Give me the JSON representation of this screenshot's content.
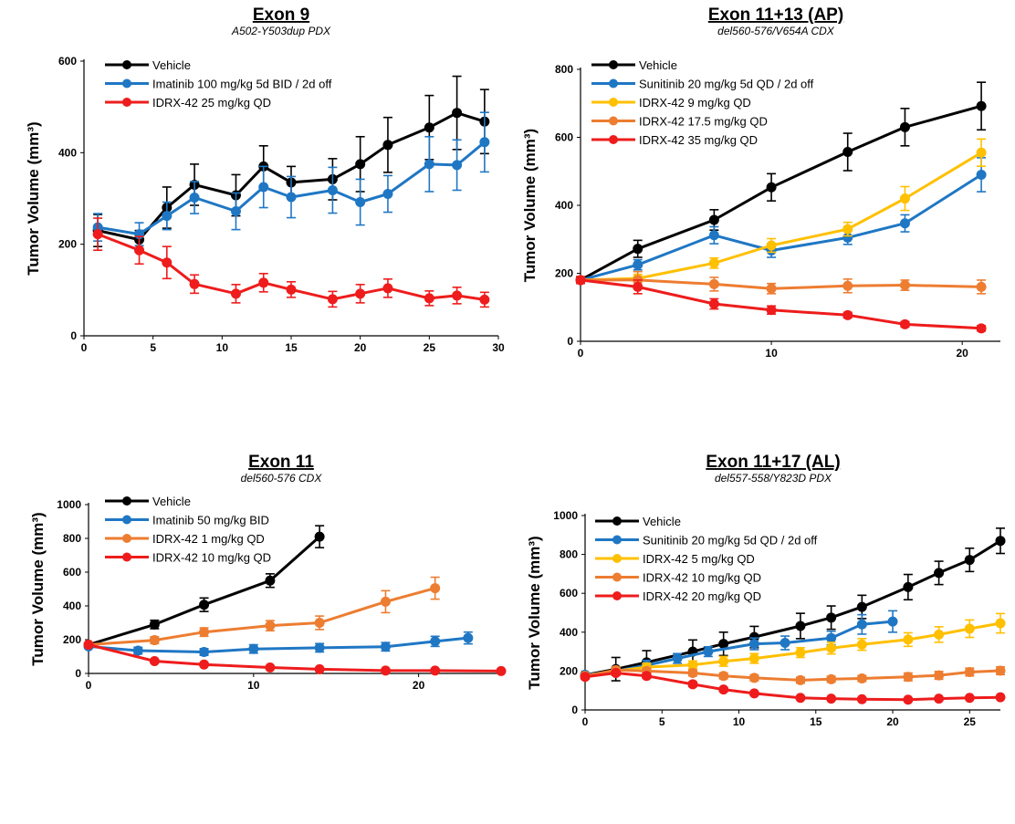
{
  "chart_data": [
    {
      "type": "line",
      "title": "Exon 9",
      "subtitle": "A502-Y503dup PDX",
      "xlabel": "",
      "ylabel": "Tumor Volume (mm³)",
      "xlim": [
        0,
        30
      ],
      "ylim": [
        0,
        600
      ],
      "xticks": [
        0,
        5,
        10,
        15,
        20,
        25,
        30
      ],
      "yticks": [
        0,
        200,
        400,
        600
      ],
      "grid": false,
      "legend": "top-left",
      "series": [
        {
          "name": "Vehicle",
          "color": "#000000",
          "x": [
            1,
            4,
            6,
            8,
            11,
            13,
            15,
            18,
            20,
            22,
            25,
            27,
            29
          ],
          "y": [
            230,
            210,
            280,
            330,
            307,
            370,
            335,
            342,
            375,
            417,
            455,
            487,
            468
          ],
          "err": [
            35,
            20,
            45,
            45,
            45,
            45,
            35,
            45,
            60,
            60,
            70,
            80,
            70
          ]
        },
        {
          "name": "Imatinib 100 mg/kg 5d BID / 2d off",
          "color": "#1f77c4",
          "x": [
            1,
            4,
            6,
            8,
            11,
            13,
            15,
            18,
            20,
            22,
            25,
            27,
            29
          ],
          "y": [
            237,
            222,
            262,
            302,
            272,
            325,
            303,
            318,
            292,
            310,
            375,
            373,
            423
          ],
          "err": [
            30,
            25,
            30,
            35,
            40,
            45,
            45,
            50,
            50,
            40,
            60,
            55,
            65
          ]
        },
        {
          "name": "IDRX-42 25 mg/kg QD",
          "color": "#ee1c1c",
          "x": [
            1,
            4,
            6,
            8,
            11,
            13,
            15,
            18,
            20,
            22,
            25,
            27,
            29
          ],
          "y": [
            222,
            187,
            160,
            113,
            92,
            116,
            101,
            80,
            92,
            104,
            82,
            88,
            79
          ],
          "err": [
            35,
            30,
            35,
            20,
            20,
            20,
            17,
            17,
            20,
            20,
            16,
            18,
            16
          ]
        }
      ]
    },
    {
      "type": "line",
      "title": "Exon 11+13 (AP)",
      "subtitle": "del560-576/V654A CDX",
      "xlabel": "",
      "ylabel": "Tumor Volume (mm³)",
      "xlim": [
        0,
        22
      ],
      "ylim": [
        0,
        800
      ],
      "xticks": [
        0,
        10,
        20
      ],
      "yticks": [
        0,
        200,
        400,
        600,
        800
      ],
      "grid": false,
      "legend": "top-left",
      "series": [
        {
          "name": "Vehicle",
          "color": "#000000",
          "x": [
            0,
            3,
            7,
            10,
            14,
            17,
            21
          ],
          "y": [
            180,
            272,
            357,
            453,
            557,
            630,
            692
          ],
          "err": [
            10,
            25,
            30,
            40,
            55,
            55,
            70
          ]
        },
        {
          "name": "Sunitinib 20 mg/kg 5d QD / 2d off",
          "color": "#1f77c4",
          "x": [
            0,
            3,
            7,
            10,
            14,
            17,
            21
          ],
          "y": [
            180,
            225,
            312,
            267,
            305,
            347,
            490
          ],
          "err": [
            10,
            15,
            25,
            20,
            20,
            25,
            50
          ]
        },
        {
          "name": "IDRX-42 9 mg/kg QD",
          "color": "#ffc000",
          "x": [
            0,
            3,
            7,
            10,
            14,
            17,
            21
          ],
          "y": [
            180,
            185,
            230,
            282,
            330,
            420,
            555
          ],
          "err": [
            10,
            12,
            15,
            20,
            20,
            35,
            40
          ]
        },
        {
          "name": "IDRX-42 17.5 mg/kg QD",
          "color": "#ed7d31",
          "x": [
            0,
            3,
            7,
            10,
            14,
            17,
            21
          ],
          "y": [
            180,
            180,
            168,
            155,
            163,
            165,
            160
          ],
          "err": [
            10,
            25,
            20,
            15,
            20,
            15,
            20
          ]
        },
        {
          "name": "IDRX-42 35 mg/kg QD",
          "color": "#ee1c1c",
          "x": [
            0,
            3,
            7,
            10,
            14,
            17,
            21
          ],
          "y": [
            180,
            160,
            110,
            92,
            77,
            50,
            38
          ],
          "err": [
            10,
            20,
            15,
            12,
            8,
            8,
            8
          ]
        }
      ]
    },
    {
      "type": "line",
      "title": "Exon 11",
      "subtitle": "del560-576 CDX",
      "xlabel": "",
      "ylabel": "Tumor Volume (mm³)",
      "xlim": [
        0,
        25
      ],
      "ylim": [
        0,
        1000
      ],
      "xticks": [
        0,
        10,
        20
      ],
      "yticks": [
        0,
        200,
        400,
        600,
        800,
        1000
      ],
      "grid": false,
      "legend": "top-left",
      "series": [
        {
          "name": "Vehicle",
          "color": "#000000",
          "x": [
            0,
            4,
            7,
            11,
            14
          ],
          "y": [
            170,
            290,
            407,
            550,
            810
          ],
          "err": [
            10,
            25,
            40,
            40,
            65
          ]
        },
        {
          "name": "Imatinib 50 mg/kg BID",
          "color": "#1f77c4",
          "x": [
            0,
            3,
            7,
            10,
            14,
            18,
            21,
            23
          ],
          "y": [
            160,
            135,
            127,
            145,
            152,
            158,
            190,
            210
          ],
          "err": [
            10,
            20,
            20,
            25,
            25,
            25,
            30,
            35
          ]
        },
        {
          "name": "IDRX-42 1 mg/kg QD",
          "color": "#ed7d31",
          "x": [
            0,
            4,
            7,
            11,
            14,
            18,
            21
          ],
          "y": [
            170,
            197,
            245,
            283,
            300,
            425,
            505
          ],
          "err": [
            10,
            20,
            25,
            30,
            40,
            65,
            65
          ]
        },
        {
          "name": "IDRX-42 10 mg/kg QD",
          "color": "#ee1c1c",
          "x": [
            0,
            4,
            7,
            11,
            14,
            18,
            21,
            25
          ],
          "y": [
            170,
            73,
            53,
            35,
            25,
            17,
            17,
            14
          ],
          "err": [
            10,
            8,
            6,
            5,
            5,
            4,
            4,
            4
          ]
        }
      ]
    },
    {
      "type": "line",
      "title": "Exon 11+17 (AL)",
      "subtitle": "del557-558/Y823D PDX",
      "xlabel": "",
      "ylabel": "Tumor Volume (mm³)",
      "xlim": [
        0,
        27
      ],
      "ylim": [
        0,
        1000
      ],
      "xticks": [
        0,
        5,
        10,
        15,
        20,
        25
      ],
      "yticks": [
        0,
        200,
        400,
        600,
        800,
        1000
      ],
      "grid": false,
      "legend": "top-left",
      "series": [
        {
          "name": "Vehicle",
          "color": "#000000",
          "x": [
            0,
            2,
            4,
            7,
            9,
            11,
            14,
            16,
            18,
            21,
            23,
            25,
            27
          ],
          "y": [
            180,
            210,
            245,
            300,
            340,
            375,
            432,
            475,
            530,
            632,
            705,
            772,
            870
          ],
          "err": [
            10,
            60,
            60,
            60,
            60,
            55,
            65,
            60,
            60,
            65,
            60,
            60,
            65
          ]
        },
        {
          "name": "Sunitinib 20 mg/kg 5d QD / 2d off",
          "color": "#1f77c4",
          "x": [
            0,
            2,
            4,
            6,
            8,
            11,
            13,
            16,
            18,
            20
          ],
          "y": [
            180,
            200,
            230,
            265,
            300,
            340,
            345,
            370,
            440,
            455
          ],
          "err": [
            10,
            20,
            25,
            25,
            25,
            30,
            35,
            35,
            50,
            55
          ]
        },
        {
          "name": "IDRX-42 5 mg/kg QD",
          "color": "#ffc000",
          "x": [
            0,
            2,
            4,
            7,
            9,
            11,
            14,
            16,
            18,
            21,
            23,
            25,
            27
          ],
          "y": [
            175,
            200,
            220,
            232,
            250,
            265,
            295,
            318,
            337,
            362,
            388,
            418,
            446
          ],
          "err": [
            10,
            20,
            20,
            20,
            25,
            25,
            25,
            30,
            30,
            35,
            40,
            45,
            50
          ]
        },
        {
          "name": "IDRX-42 10 mg/kg QD",
          "color": "#ed7d31",
          "x": [
            0,
            2,
            4,
            7,
            9,
            11,
            14,
            16,
            18,
            21,
            23,
            25,
            27
          ],
          "y": [
            175,
            205,
            200,
            190,
            175,
            165,
            153,
            158,
            162,
            170,
            178,
            195,
            202
          ],
          "err": [
            10,
            15,
            15,
            15,
            15,
            15,
            15,
            15,
            15,
            20,
            20,
            20,
            20
          ]
        },
        {
          "name": "IDRX-42 20 mg/kg QD",
          "color": "#ee1c1c",
          "x": [
            0,
            2,
            4,
            7,
            9,
            11,
            14,
            16,
            18,
            21,
            23,
            25,
            27
          ],
          "y": [
            170,
            190,
            175,
            132,
            105,
            85,
            62,
            58,
            55,
            53,
            58,
            62,
            65
          ],
          "err": [
            10,
            12,
            12,
            12,
            10,
            8,
            6,
            6,
            5,
            5,
            5,
            5,
            5
          ]
        }
      ]
    }
  ]
}
